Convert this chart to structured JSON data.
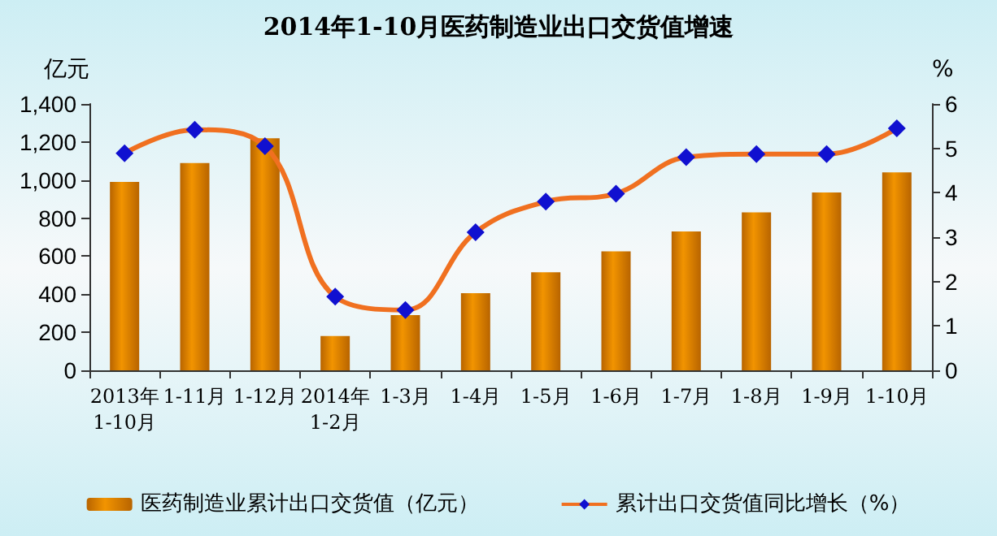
{
  "chart_data": {
    "type": "bar",
    "title": "2014年1-10月医药制造业出口交货值增速",
    "ylabel": "亿元",
    "y2label": "%",
    "categories": [
      "2013年\n1-10月",
      "1-11月",
      "1-12月",
      "2014年\n1-2月",
      "1-3月",
      "1-4月",
      "1-5月",
      "1-6月",
      "1-7月",
      "1-8月",
      "1-9月",
      "1-10月"
    ],
    "series": [
      {
        "name": "医药制造业累计出口交货值（亿元）",
        "color": "#f29400",
        "values": [
          990,
          1090,
          1220,
          180,
          290,
          405,
          515,
          625,
          730,
          830,
          935,
          1040
        ]
      },
      {
        "name": "累计出口交货值同比增长（%）",
        "type": "line",
        "axis": "y2",
        "color": "#f07020",
        "marker": "diamond",
        "values": [
          4.89,
          5.42,
          5.05,
          1.66,
          1.36,
          3.11,
          3.8,
          3.98,
          4.8,
          4.87,
          4.87,
          5.45
        ]
      }
    ],
    "ylim": [
      0,
      1400
    ],
    "yticks": [
      0,
      {
        "value": 200,
        "label": "200"
      },
      {
        "value": 400,
        "label": "400"
      },
      {
        "value": 600,
        "label": "600"
      },
      {
        "value": 800,
        "label": "800"
      },
      {
        "value": 1000,
        "label": "1,000"
      },
      {
        "value": 1200,
        "label": "1,200"
      },
      {
        "value": 1400,
        "label": "1,400"
      }
    ],
    "y2lim": [
      0,
      6
    ],
    "y2ticks": [
      0,
      1,
      2,
      3,
      4,
      5,
      6
    ],
    "legend": "bottom",
    "grid": false
  }
}
